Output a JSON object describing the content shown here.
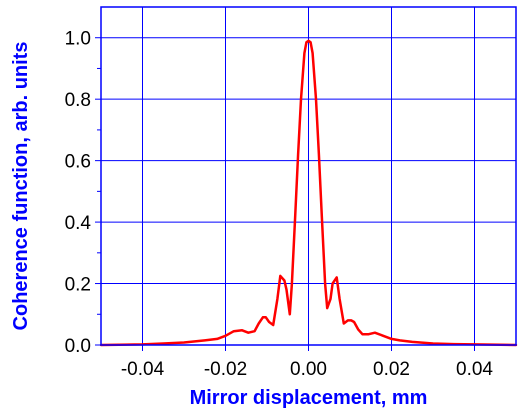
{
  "chart_data": {
    "type": "line",
    "title": "",
    "xlabel": "Mirror displacement, mm",
    "ylabel": "Coherence function, arb. units",
    "xlim": [
      -0.05,
      0.05
    ],
    "ylim": [
      0.0,
      1.1
    ],
    "grid": true,
    "legend": "none",
    "x_ticks": [
      -0.04,
      -0.02,
      0.0,
      0.02,
      0.04
    ],
    "x_tick_labels": [
      "-0.04",
      "-0.02",
      "0.00",
      "0.02",
      "0.04"
    ],
    "y_ticks": [
      0.0,
      0.2,
      0.4,
      0.6,
      0.8,
      1.0
    ],
    "y_tick_labels": [
      "0.0",
      "0.2",
      "0.4",
      "0.6",
      "0.8",
      "1.0"
    ],
    "colors": {
      "axes": "#0000ff",
      "grid": "#0000ff",
      "line": "#ff0000",
      "label": "#0000ff"
    },
    "series": [
      {
        "x": [
          -0.05,
          -0.04,
          -0.035,
          -0.03,
          -0.025,
          -0.022,
          -0.02,
          -0.018,
          -0.016,
          -0.0145,
          -0.013,
          -0.012,
          -0.011,
          -0.0103,
          -0.0095,
          -0.0085,
          -0.0075,
          -0.0068,
          -0.0058,
          -0.0053,
          -0.0045,
          -0.004,
          -0.0032,
          -0.0025,
          -0.0018,
          -0.001,
          -0.0005,
          0.0,
          0.0005,
          0.001,
          0.0018,
          0.0025,
          0.0032,
          0.004,
          0.0045,
          0.0053,
          0.0058,
          0.0068,
          0.0075,
          0.0085,
          0.0095,
          0.0103,
          0.011,
          0.012,
          0.013,
          0.0145,
          0.016,
          0.018,
          0.02,
          0.022,
          0.025,
          0.03,
          0.035,
          0.04,
          0.05
        ],
        "y": [
          0.0,
          0.002,
          0.005,
          0.008,
          0.015,
          0.02,
          0.03,
          0.045,
          0.048,
          0.04,
          0.045,
          0.07,
          0.09,
          0.09,
          0.075,
          0.065,
          0.15,
          0.225,
          0.21,
          0.18,
          0.1,
          0.2,
          0.42,
          0.62,
          0.8,
          0.95,
          0.985,
          0.99,
          0.985,
          0.95,
          0.8,
          0.62,
          0.42,
          0.2,
          0.12,
          0.15,
          0.2,
          0.22,
          0.15,
          0.07,
          0.08,
          0.08,
          0.075,
          0.05,
          0.035,
          0.035,
          0.04,
          0.03,
          0.02,
          0.015,
          0.01,
          0.005,
          0.003,
          0.002,
          0.0
        ]
      }
    ]
  }
}
